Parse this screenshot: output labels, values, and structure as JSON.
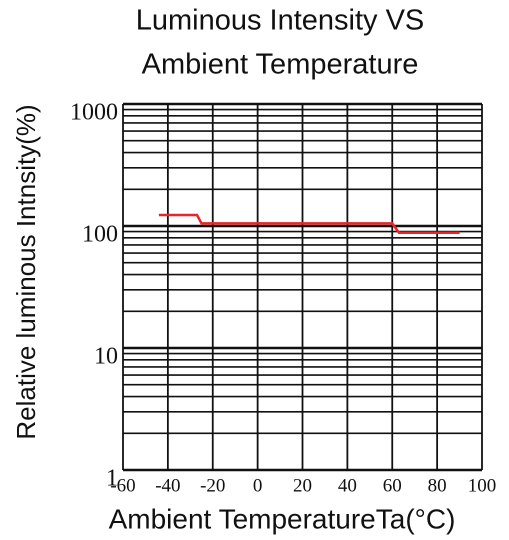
{
  "chart_data": {
    "type": "line",
    "title_lines": [
      "Luminous Intensity VS",
      "Ambient Temperature"
    ],
    "y_label": "Relative luminous Intnsity(%)",
    "x_label": "Ambient TemperatureTa(°C)",
    "x": [
      -44,
      -27,
      -25,
      60,
      63,
      90
    ],
    "values": [
      123,
      123,
      105,
      105,
      88,
      88
    ],
    "color": "#e8252a",
    "xlim": [
      -60,
      100
    ],
    "xticks": [
      -60,
      -40,
      -20,
      0,
      20,
      40,
      60,
      80,
      100
    ],
    "ylim": [
      1,
      1000
    ],
    "yticks": [
      1,
      10,
      100,
      1000
    ],
    "yminorticks": [
      2,
      3,
      4,
      5,
      6,
      7,
      8,
      9,
      20,
      30,
      40,
      50,
      60,
      70,
      80,
      90,
      200,
      300,
      400,
      500,
      600,
      700,
      800,
      900
    ],
    "log_y": true,
    "grid": true
  }
}
